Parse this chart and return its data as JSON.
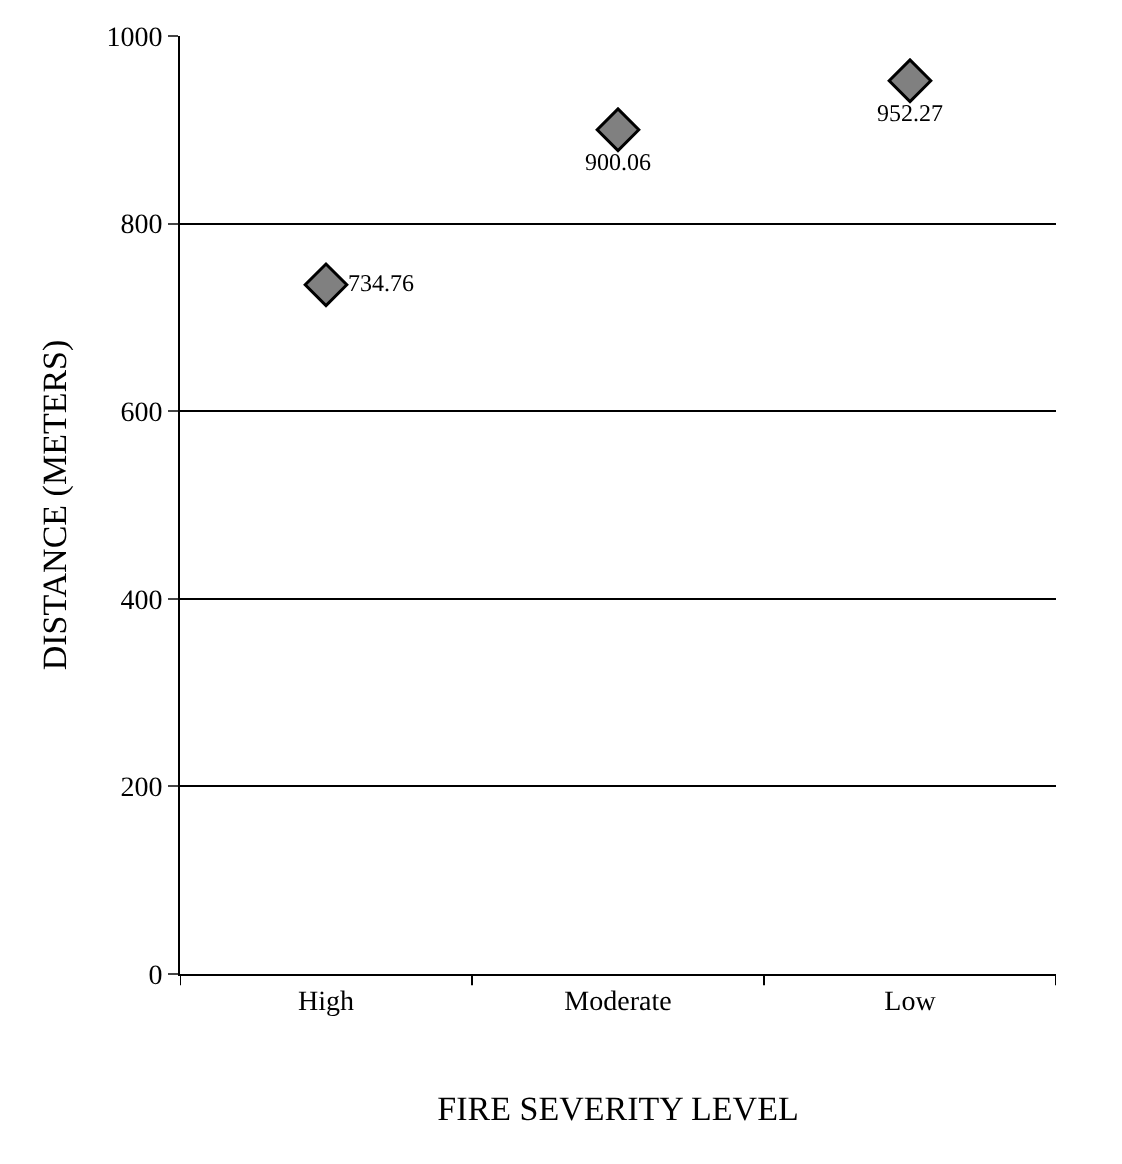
{
  "chart_data": {
    "type": "scatter",
    "xlabel": "FIRE SEVERITY LEVEL",
    "ylabel": "DISTANCE (METERS)",
    "categories": [
      "High",
      "Moderate",
      "Low"
    ],
    "values": [
      734.76,
      900.06,
      952.27
    ],
    "color": "#808080",
    "marker": "diamond",
    "data_labels": true,
    "ylim": [
      0,
      1000
    ],
    "yticks": [
      0,
      200,
      400,
      600,
      800,
      1000
    ],
    "grid": "y",
    "legend": false
  }
}
